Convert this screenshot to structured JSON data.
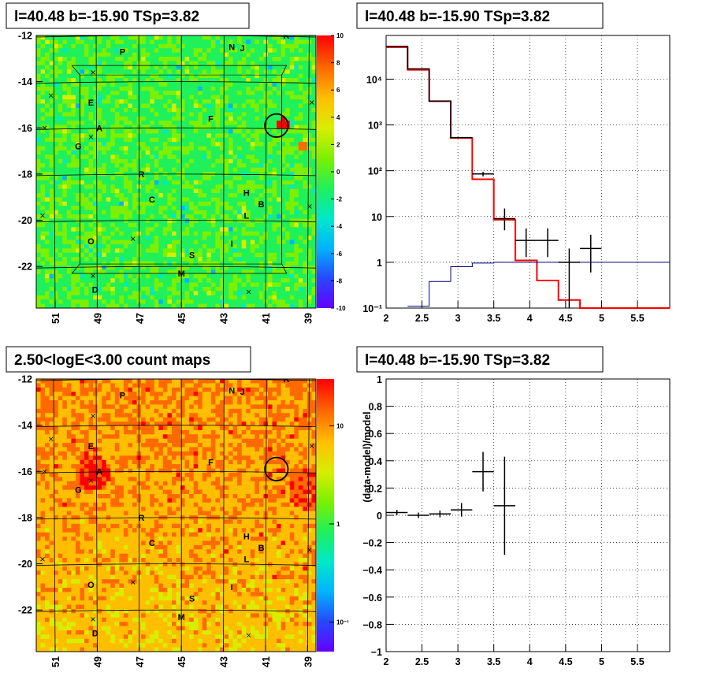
{
  "panels": {
    "map1": {
      "title": "l=40.48 b=-15.90 TSp=3.82",
      "x_ticks": [
        "51",
        "49",
        "47",
        "45",
        "43",
        "41",
        "39"
      ],
      "x_tick_values": [
        51,
        49,
        47,
        45,
        43,
        41,
        39
      ],
      "x_range": [
        51.9,
        38.6
      ],
      "y_ticks": [
        "-12",
        "-14",
        "-16",
        "-18",
        "-20",
        "-22"
      ],
      "y_tick_values": [
        -12,
        -14,
        -16,
        -18,
        -20,
        -22
      ],
      "y_range": [
        -12.0,
        -23.8
      ],
      "colorbar_labels": [
        "10",
        "8",
        "6",
        "4",
        "2",
        "0",
        "-2",
        "-4",
        "-6",
        "-8",
        "-10"
      ],
      "colorbar_values": [
        10,
        8,
        6,
        4,
        2,
        0,
        -2,
        -4,
        -6,
        -8,
        -10
      ]
    },
    "spectrum": {
      "title": "l=40.48 b=-15.90 TSp=3.82",
      "x_ticks": [
        "2",
        "2.5",
        "3",
        "3.5",
        "4",
        "4.5",
        "5",
        "5.5"
      ],
      "x_tick_values": [
        2,
        2.5,
        3,
        3.5,
        4,
        4.5,
        5,
        5.5
      ],
      "y_ticks": [
        "10⁻¹",
        "1",
        "10",
        "10²",
        "10³",
        "10⁴"
      ],
      "y_tick_values": [
        0.1,
        1,
        10,
        100,
        1000,
        10000
      ]
    },
    "map2": {
      "title": "2.50<logE<3.00 count maps",
      "x_ticks": [
        "51",
        "49",
        "47",
        "45",
        "43",
        "41",
        "39"
      ],
      "y_ticks": [
        "-12",
        "-14",
        "-16",
        "-18",
        "-20",
        "-22"
      ],
      "colorbar_labels": [
        "10",
        "1",
        "10⁻¹"
      ]
    },
    "residual": {
      "title": "l=40.48 b=-15.90 TSp=3.82",
      "ylabel": "(data-model)/model",
      "x_ticks": [
        "2",
        "2.5",
        "3",
        "3.5",
        "4",
        "4.5",
        "5",
        "5.5"
      ],
      "x_tick_values": [
        2,
        2.5,
        3,
        3.5,
        4,
        4.5,
        5,
        5.5
      ],
      "y_ticks": [
        "1",
        "0.8",
        "0.6",
        "0.4",
        "0.2",
        "0",
        "−0.2",
        "−0.4",
        "−0.6",
        "−0.8",
        "−1"
      ],
      "y_tick_values": [
        1,
        0.8,
        0.6,
        0.4,
        0.2,
        0,
        -0.2,
        -0.4,
        -0.6,
        -0.8,
        -1
      ]
    }
  },
  "source_labels": [
    {
      "label": "K",
      "l": 40.0,
      "b": -12.0
    },
    {
      "label": "P",
      "l": 47.8,
      "b": -12.7
    },
    {
      "label": "N",
      "l": 42.6,
      "b": -12.5
    },
    {
      "label": "J",
      "l": 42.1,
      "b": -12.55
    },
    {
      "label": "E",
      "l": 49.3,
      "b": -14.9
    },
    {
      "label": "A",
      "l": 48.9,
      "b": -16.0
    },
    {
      "label": "F",
      "l": 43.6,
      "b": -15.6
    },
    {
      "label": "G",
      "l": 49.9,
      "b": -16.8
    },
    {
      "label": "R",
      "l": 46.9,
      "b": -18.0
    },
    {
      "label": "C",
      "l": 46.4,
      "b": -19.1
    },
    {
      "label": "H",
      "l": 41.9,
      "b": -18.8
    },
    {
      "label": "B",
      "l": 41.2,
      "b": -19.3
    },
    {
      "label": "L",
      "l": 41.9,
      "b": -19.8
    },
    {
      "label": "O",
      "l": 49.3,
      "b": -20.9
    },
    {
      "label": "I",
      "l": 42.6,
      "b": -21.0
    },
    {
      "label": "S",
      "l": 44.5,
      "b": -21.5
    },
    {
      "label": "M",
      "l": 45.0,
      "b": -22.3
    },
    {
      "label": "D",
      "l": 49.1,
      "b": -23.0
    }
  ],
  "marker_x": [
    {
      "l": 49.2,
      "b": -13.6
    },
    {
      "l": 51.2,
      "b": -14.6
    },
    {
      "l": 49.3,
      "b": -16.4
    },
    {
      "l": 51.5,
      "b": -16.0
    },
    {
      "l": 47.3,
      "b": -20.8
    },
    {
      "l": 49.2,
      "b": -22.4
    },
    {
      "l": 41.8,
      "b": -23.1
    },
    {
      "l": 38.9,
      "b": -19.4
    },
    {
      "l": 38.8,
      "b": -14.9
    },
    {
      "l": 51.6,
      "b": -19.8
    }
  ],
  "circle": {
    "l": 40.48,
    "b": -15.9,
    "r": 0.55
  },
  "chart_data": [
    {
      "type": "heatmap",
      "title": "l=40.48 b=-15.90 TSp=3.82",
      "xlim": [
        51.9,
        38.6
      ],
      "ylim": [
        -23.8,
        -12
      ],
      "colorbar_range": [
        -10,
        10
      ],
      "palette": [
        "#6400ff",
        "#2848ff",
        "#00b4ff",
        "#00e8c8",
        "#20f05a",
        "#7cf000",
        "#d8ee00",
        "#ffbe00",
        "#ff6a00",
        "#ff0000"
      ]
    },
    {
      "type": "line",
      "title": "l=40.48 b=-15.90 TSp=3.82",
      "yscale": "log",
      "xlim": [
        2,
        5.95
      ],
      "ylim": [
        0.1,
        90000
      ],
      "series": [
        {
          "color": "#ff0000",
          "steps": [
            [
              2.0,
              2.3,
              50000
            ],
            [
              2.3,
              2.6,
              16000
            ],
            [
              2.6,
              2.9,
              3300
            ],
            [
              2.9,
              3.2,
              520
            ],
            [
              3.2,
              3.5,
              65
            ],
            [
              3.5,
              3.8,
              8.5
            ],
            [
              3.8,
              4.1,
              1.1
            ],
            [
              4.1,
              4.4,
              0.4
            ],
            [
              4.4,
              4.7,
              0.15
            ],
            [
              4.7,
              5.95,
              0.1
            ]
          ]
        },
        {
          "color": "#000080",
          "steps": [
            [
              2.3,
              2.6,
              0.11
            ],
            [
              2.6,
              2.9,
              0.38
            ],
            [
              2.9,
              3.2,
              0.8
            ],
            [
              3.2,
              3.5,
              0.96
            ],
            [
              3.5,
              5.95,
              1.0
            ]
          ]
        },
        {
          "color": "#000000",
          "steps": [
            [
              2.0,
              2.3,
              52000
            ],
            [
              2.3,
              2.6,
              16800
            ],
            [
              2.6,
              2.9,
              3300
            ],
            [
              2.9,
              3.2,
              530
            ]
          ]
        }
      ],
      "points": [
        {
          "x": 3.35,
          "xerr": 0.15,
          "y": 85,
          "ylo": 75,
          "yhi": 95
        },
        {
          "x": 3.65,
          "xerr": 0.15,
          "y": 9,
          "ylo": 5,
          "yhi": 15
        },
        {
          "x": 3.95,
          "xerr": 0.15,
          "y": 3,
          "ylo": 1.3,
          "yhi": 5.5
        },
        {
          "x": 4.25,
          "xerr": 0.15,
          "y": 3,
          "ylo": 1.3,
          "yhi": 5.5
        },
        {
          "x": 4.55,
          "xerr": 0.15,
          "y": 1,
          "ylo": 0.1,
          "yhi": 2.0
        },
        {
          "x": 4.85,
          "xerr": 0.15,
          "y": 2,
          "ylo": 0.6,
          "yhi": 4.0
        }
      ]
    },
    {
      "type": "heatmap",
      "title": "2.50<logE<3.00 count maps",
      "xlim": [
        51.9,
        38.6
      ],
      "ylim": [
        -23.8,
        -12
      ],
      "colorbar_scale": "log",
      "colorbar_range": [
        0.05,
        30
      ],
      "palette": [
        "#6400ff",
        "#2848ff",
        "#00b4ff",
        "#00e8c8",
        "#20f05a",
        "#7cf000",
        "#d8ee00",
        "#ffbe00",
        "#ff6a00",
        "#ff0000"
      ]
    },
    {
      "type": "scatter",
      "title": "l=40.48 b=-15.90 TSp=3.82",
      "ylabel": "(data-model)/model",
      "xlim": [
        2,
        5.95
      ],
      "ylim": [
        -1,
        1
      ],
      "points": [
        {
          "x": 2.15,
          "xerr": 0.15,
          "y": 0.02,
          "yerr": 0.02
        },
        {
          "x": 2.45,
          "xerr": 0.15,
          "y": 0.0,
          "yerr": 0.02
        },
        {
          "x": 2.75,
          "xerr": 0.15,
          "y": 0.01,
          "yerr": 0.025
        },
        {
          "x": 3.05,
          "xerr": 0.15,
          "y": 0.04,
          "yerr": 0.05
        },
        {
          "x": 3.35,
          "xerr": 0.15,
          "y": 0.32,
          "yerr": 0.145
        },
        {
          "x": 3.65,
          "xerr": 0.15,
          "y": 0.07,
          "yerr": 0.36
        }
      ]
    }
  ]
}
